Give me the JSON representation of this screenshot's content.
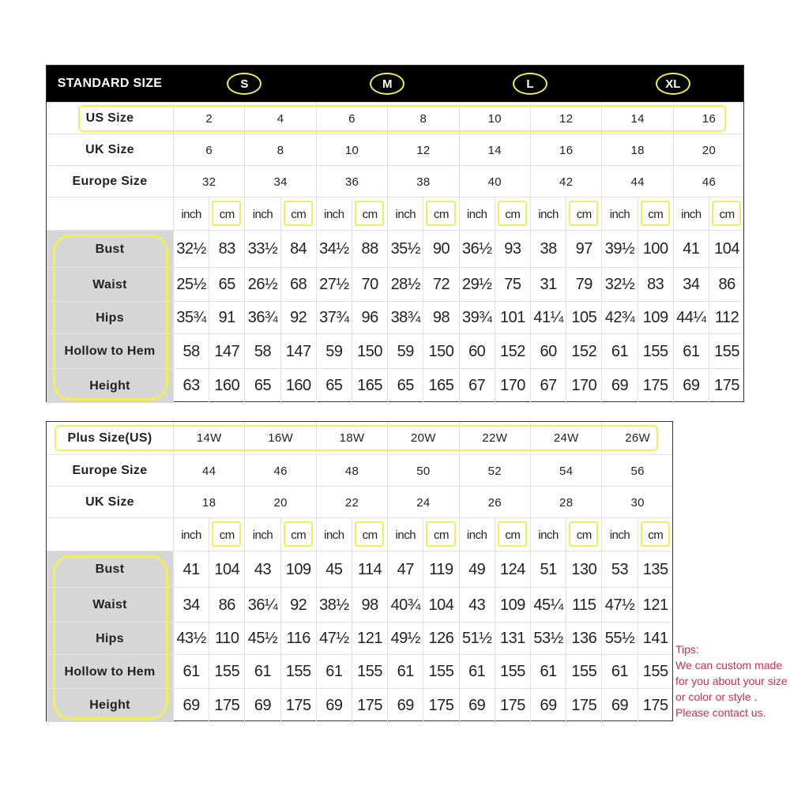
{
  "standard": {
    "title": "STANDARD SIZE",
    "size_groups": [
      "S",
      "M",
      "L",
      "XL"
    ],
    "info_rows": [
      {
        "label": "US Size",
        "values": [
          "2",
          "4",
          "6",
          "8",
          "10",
          "12",
          "14",
          "16"
        ]
      },
      {
        "label": "UK Size",
        "values": [
          "6",
          "8",
          "10",
          "12",
          "14",
          "16",
          "18",
          "20"
        ]
      },
      {
        "label": "Europe Size",
        "values": [
          "32",
          "34",
          "36",
          "38",
          "40",
          "42",
          "44",
          "46"
        ]
      }
    ],
    "unit_labels": [
      "inch",
      "cm"
    ],
    "measure_rows": [
      {
        "label": "Bust",
        "values": [
          "32½",
          "83",
          "33½",
          "84",
          "34½",
          "88",
          "35½",
          "90",
          "36½",
          "93",
          "38",
          "97",
          "39½",
          "100",
          "41",
          "104"
        ]
      },
      {
        "label": "Waist",
        "values": [
          "25½",
          "65",
          "26½",
          "68",
          "27½",
          "70",
          "28½",
          "72",
          "29½",
          "75",
          "31",
          "79",
          "32½",
          "83",
          "34",
          "86"
        ]
      },
      {
        "label": "Hips",
        "values": [
          "35¾",
          "91",
          "36¾",
          "92",
          "37¾",
          "96",
          "38¾",
          "98",
          "39¾",
          "101",
          "41¼",
          "105",
          "42¾",
          "109",
          "44¼",
          "112"
        ]
      },
      {
        "label": "Hollow to Hem",
        "values": [
          "58",
          "147",
          "58",
          "147",
          "59",
          "150",
          "59",
          "150",
          "60",
          "152",
          "60",
          "152",
          "61",
          "155",
          "61",
          "155"
        ]
      },
      {
        "label": "Height",
        "values": [
          "63",
          "160",
          "65",
          "160",
          "65",
          "165",
          "65",
          "165",
          "67",
          "170",
          "67",
          "170",
          "69",
          "175",
          "69",
          "175"
        ]
      }
    ]
  },
  "plus": {
    "info_rows": [
      {
        "label": "Plus Size(US)",
        "values": [
          "14W",
          "16W",
          "18W",
          "20W",
          "22W",
          "24W",
          "26W"
        ]
      },
      {
        "label": "Europe Size",
        "values": [
          "44",
          "46",
          "48",
          "50",
          "52",
          "54",
          "56"
        ]
      },
      {
        "label": "UK Size",
        "values": [
          "18",
          "20",
          "22",
          "24",
          "26",
          "28",
          "30"
        ]
      }
    ],
    "unit_labels": [
      "inch",
      "cm"
    ],
    "measure_rows": [
      {
        "label": "Bust",
        "values": [
          "41",
          "104",
          "43",
          "109",
          "45",
          "114",
          "47",
          "119",
          "49",
          "124",
          "51",
          "130",
          "53",
          "135"
        ]
      },
      {
        "label": "Waist",
        "values": [
          "34",
          "86",
          "36¼",
          "92",
          "38½",
          "98",
          "40¾",
          "104",
          "43",
          "109",
          "45¼",
          "115",
          "47½",
          "121"
        ]
      },
      {
        "label": "Hips",
        "values": [
          "43½",
          "110",
          "45½",
          "116",
          "47½",
          "121",
          "49½",
          "126",
          "51½",
          "131",
          "53½",
          "136",
          "55½",
          "141"
        ]
      },
      {
        "label": "Hollow to Hem",
        "values": [
          "61",
          "155",
          "61",
          "155",
          "61",
          "155",
          "61",
          "155",
          "61",
          "155",
          "61",
          "155",
          "61",
          "155"
        ]
      },
      {
        "label": "Height",
        "values": [
          "69",
          "175",
          "69",
          "175",
          "69",
          "175",
          "69",
          "175",
          "69",
          "175",
          "69",
          "175",
          "69",
          "175"
        ]
      }
    ]
  },
  "tips": {
    "title": "Tips:",
    "lines": [
      "We can custom made",
      "for you about your size",
      "or color or style .",
      "Please contact us."
    ]
  },
  "colors": {
    "highlight": "#f0ee5a",
    "header_bg": "#000000",
    "label_bg": "#d6d6d6",
    "tips_text": "#c9304a"
  }
}
